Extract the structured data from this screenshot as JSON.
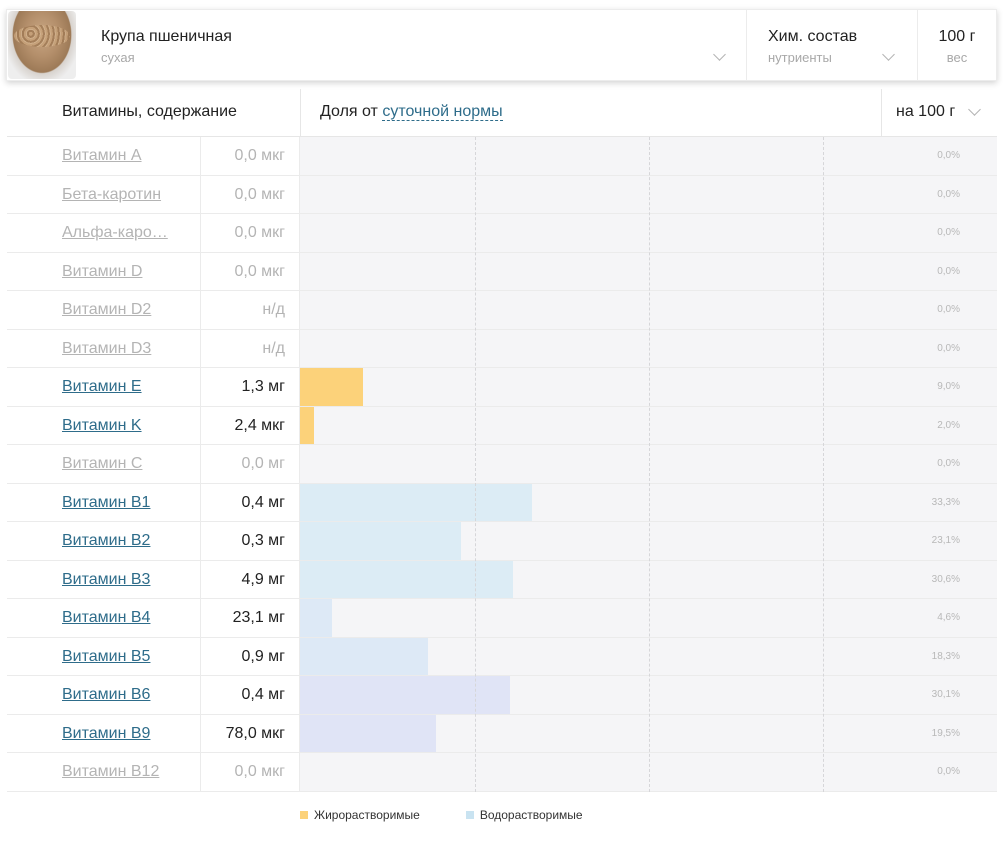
{
  "product": {
    "name": "Крупа пшеничная",
    "state": "сухая",
    "photo_icon": "wheat-groats-bowl-photo"
  },
  "composition": {
    "title": "Хим. состав",
    "subtitle": "нутриенты"
  },
  "weight": {
    "value": "100 г",
    "label": "вес"
  },
  "table_header": {
    "left": "Витамины, содержание",
    "mid_prefix": "Доля от",
    "mid_link": "суточной нормы",
    "right": "на 100 г"
  },
  "colors": {
    "fat_soluble": "#fcd27a",
    "water_soluble_1": "#dcecf5",
    "water_soluble_2": "#dde9f6",
    "water_soluble_3": "#e0e4f6",
    "bar_track": "#f5f5f7",
    "link": "#2e6c8a",
    "dim_text": "#b4b4b4"
  },
  "rows": [
    {
      "name": "Витамин A",
      "value": "0,0 мкг",
      "pct": "0,0%",
      "percent": 0,
      "active": false,
      "color": ""
    },
    {
      "name": "Бета-каротин",
      "value": "0,0 мкг",
      "pct": "0,0%",
      "percent": 0,
      "active": false,
      "color": ""
    },
    {
      "name": "Альфа-каро…",
      "value": "0,0 мкг",
      "pct": "0,0%",
      "percent": 0,
      "active": false,
      "color": ""
    },
    {
      "name": "Витамин D",
      "value": "0,0 мкг",
      "pct": "0,0%",
      "percent": 0,
      "active": false,
      "color": ""
    },
    {
      "name": "Витамин D2",
      "value": "н/д",
      "pct": "0,0%",
      "percent": 0,
      "active": false,
      "color": ""
    },
    {
      "name": "Витамин D3",
      "value": "н/д",
      "pct": "0,0%",
      "percent": 0,
      "active": false,
      "color": ""
    },
    {
      "name": "Витамин E",
      "value": "1,3 мг",
      "pct": "9,0%",
      "percent": 9.0,
      "active": true,
      "color": "#fcd27a"
    },
    {
      "name": "Витамин K",
      "value": "2,4 мкг",
      "pct": "2,0%",
      "percent": 2.0,
      "active": true,
      "color": "#fcd27a"
    },
    {
      "name": "Витамин C",
      "value": "0,0 мг",
      "pct": "0,0%",
      "percent": 0,
      "active": false,
      "color": ""
    },
    {
      "name": "Витамин B1",
      "value": "0,4 мг",
      "pct": "33,3%",
      "percent": 33.3,
      "active": true,
      "color": "#dcecf5"
    },
    {
      "name": "Витамин B2",
      "value": "0,3 мг",
      "pct": "23,1%",
      "percent": 23.1,
      "active": true,
      "color": "#dcecf5"
    },
    {
      "name": "Витамин B3",
      "value": "4,9 мг",
      "pct": "30,6%",
      "percent": 30.6,
      "active": true,
      "color": "#dcecf5"
    },
    {
      "name": "Витамин B4",
      "value": "23,1 мг",
      "pct": "4,6%",
      "percent": 4.6,
      "active": true,
      "color": "#dde9f6"
    },
    {
      "name": "Витамин B5",
      "value": "0,9 мг",
      "pct": "18,3%",
      "percent": 18.3,
      "active": true,
      "color": "#dde9f6"
    },
    {
      "name": "Витамин B6",
      "value": "0,4 мг",
      "pct": "30,1%",
      "percent": 30.1,
      "active": true,
      "color": "#e0e4f6"
    },
    {
      "name": "Витамин B9",
      "value": "78,0 мкг",
      "pct": "19,5%",
      "percent": 19.5,
      "active": true,
      "color": "#e0e4f6"
    },
    {
      "name": "Витамин B12",
      "value": "0,0 мкг",
      "pct": "0,0%",
      "percent": 0,
      "active": false,
      "color": ""
    }
  ],
  "legend": [
    {
      "label": "Жирорастворимые",
      "color": "#fcd27a"
    },
    {
      "label": "Водорастворимые",
      "color": "#c9e3f1"
    }
  ]
}
